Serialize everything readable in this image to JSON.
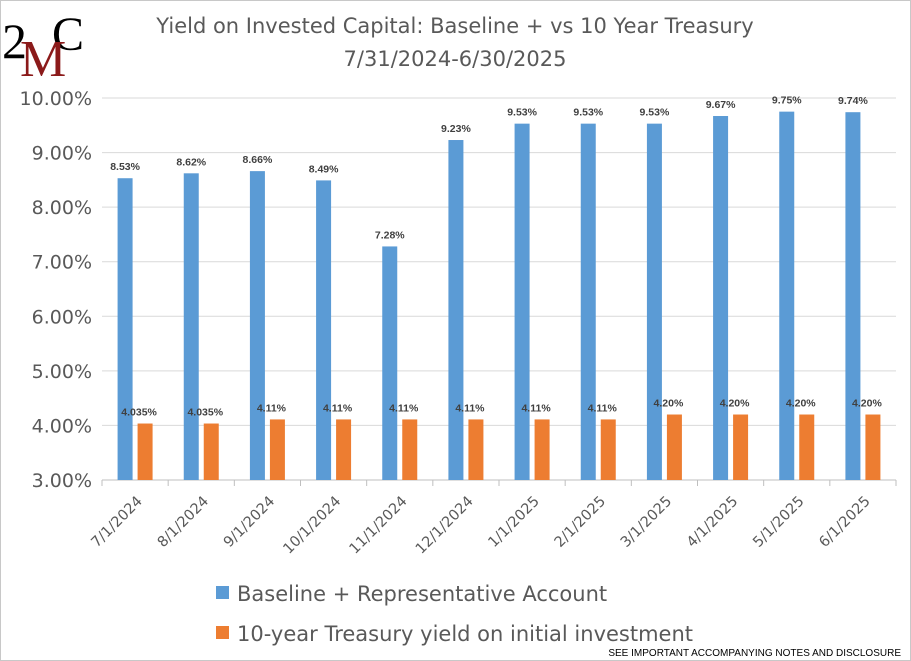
{
  "logo": {
    "text_left": "2",
    "text_mid": "M",
    "text_right": "C",
    "colors": {
      "dark": "#000000",
      "red": "#8b1a1a"
    }
  },
  "footnote": "SEE IMPORTANT ACCOMPANYING NOTES AND DISCLOSURE",
  "chart_data": {
    "type": "bar",
    "title": "Yield on Invested Capital:  Baseline + vs 10 Year Treasury",
    "subtitle": "7/31/2024-6/30/2025",
    "xlabel": "",
    "ylabel": "",
    "ylim": [
      3.0,
      10.0
    ],
    "yticks": [
      3.0,
      4.0,
      5.0,
      6.0,
      7.0,
      8.0,
      9.0,
      10.0
    ],
    "ytick_labels": [
      "3.00%",
      "4.00%",
      "5.00%",
      "6.00%",
      "7.00%",
      "8.00%",
      "9.00%",
      "10.00%"
    ],
    "grid": true,
    "legend_position": "bottom",
    "categories": [
      "7/1/2024",
      "8/1/2024",
      "9/1/2024",
      "10/1/2024",
      "11/1/2024",
      "12/1/2024",
      "1/1/2025",
      "2/1/2025",
      "3/1/2025",
      "4/1/2025",
      "5/1/2025",
      "6/1/2025"
    ],
    "series": [
      {
        "name": "Baseline + Representative Account",
        "color": "#5b9bd5",
        "values": [
          8.53,
          8.62,
          8.66,
          8.49,
          7.28,
          9.23,
          9.53,
          9.53,
          9.53,
          9.67,
          9.75,
          9.74
        ],
        "labels": [
          "8.53%",
          "8.62%",
          "8.66%",
          "8.49%",
          "7.28%",
          "9.23%",
          "9.53%",
          "9.53%",
          "9.53%",
          "9.67%",
          "9.75%",
          "9.74%"
        ]
      },
      {
        "name": "10-year Treasury yield on initial investment",
        "color": "#ed7d31",
        "values": [
          4.035,
          4.035,
          4.11,
          4.11,
          4.11,
          4.11,
          4.11,
          4.11,
          4.2,
          4.2,
          4.2,
          4.2
        ],
        "labels": [
          "4.035%",
          "4.035%",
          "4.11%",
          "4.11%",
          "4.11%",
          "4.11%",
          "4.11%",
          "4.11%",
          "4.20%",
          "4.20%",
          "4.20%",
          "4.20%"
        ]
      }
    ]
  }
}
